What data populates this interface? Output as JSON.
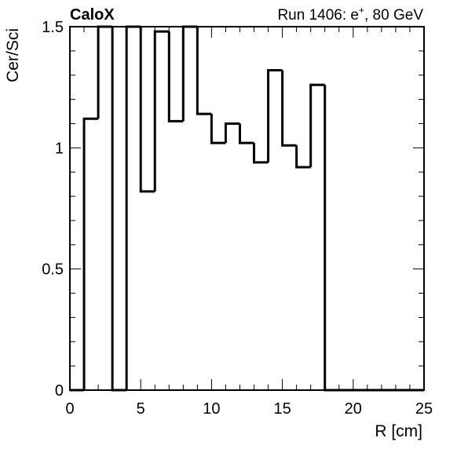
{
  "chart_data": {
    "type": "histogram",
    "title_left": "CaloX",
    "title_right": "Run 1406: e",
    "title_right_sup": "+",
    "title_right_tail": ", 80 GeV",
    "xlabel": "R [cm]",
    "ylabel": "Cer/Sci",
    "xlim": [
      0,
      25
    ],
    "ylim": [
      0,
      1.5
    ],
    "x_ticks": [
      0,
      5,
      10,
      15,
      20,
      25
    ],
    "x_tick_labels": [
      "0",
      "5",
      "10",
      "15",
      "20",
      "25"
    ],
    "y_ticks": [
      0,
      0.5,
      1,
      1.5
    ],
    "y_tick_labels": [
      "0",
      "0.5",
      "1",
      "1.5"
    ],
    "bin_width": 1,
    "bin_edges_start": 0,
    "values": [
      0,
      1.12,
      1.5,
      0,
      1.5,
      0.82,
      1.48,
      1.11,
      1.5,
      1.14,
      1.02,
      1.1,
      1.02,
      0.94,
      1.32,
      1.01,
      0.92,
      1.26,
      0,
      0,
      0,
      0,
      0,
      0,
      0
    ],
    "line_color": "#000000",
    "grid": false
  }
}
